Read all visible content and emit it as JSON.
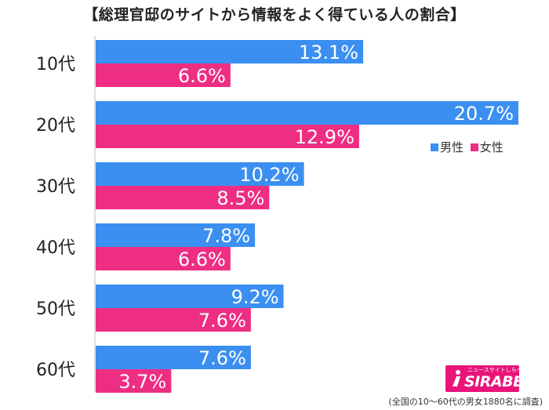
{
  "title": "【総理官邸のサイトから情報をよく得ている人の割合】",
  "colors": {
    "male": "#3b8ff0",
    "female": "#ee2e82"
  },
  "legend": {
    "male": "男性",
    "female": "女性"
  },
  "footnote": "(全国の10～60代の男女1880名に調査)",
  "logo": {
    "tagline": "ニュースサイトしらべぇ",
    "name": "SIRABEE"
  },
  "chart_data": {
    "type": "bar",
    "orientation": "horizontal",
    "categories": [
      "10代",
      "20代",
      "30代",
      "40代",
      "50代",
      "60代"
    ],
    "series": [
      {
        "name": "男性",
        "values": [
          13.1,
          20.7,
          10.2,
          7.8,
          9.2,
          7.6
        ]
      },
      {
        "name": "女性",
        "values": [
          6.6,
          12.9,
          8.5,
          6.6,
          7.6,
          3.7
        ]
      }
    ],
    "unit": "%",
    "xlim": [
      0,
      21
    ],
    "legend_position": "right"
  }
}
